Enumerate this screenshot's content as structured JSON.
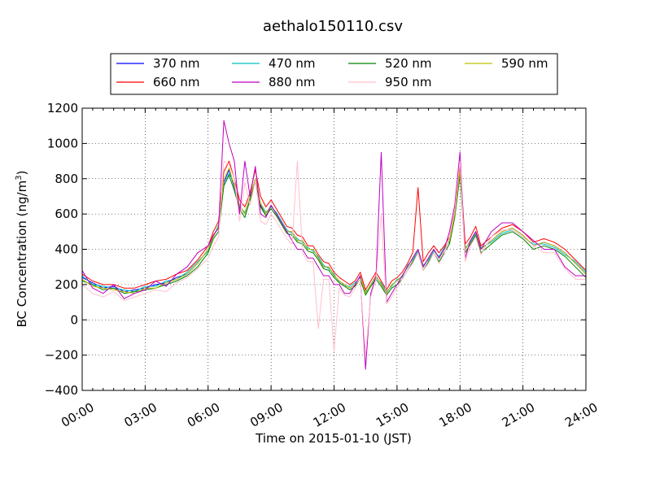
{
  "chart_data": {
    "type": "line",
    "title": "aethalo150110.csv",
    "xlabel": "Time on 2015-01-10 (JST)",
    "ylabel_main": "BC Concentration (ng/m",
    "ylabel_sup": "3",
    "ylabel_close": ")",
    "xlim": [
      0,
      24
    ],
    "ylim": [
      -400,
      1200
    ],
    "x_ticks": [
      0,
      3,
      6,
      9,
      12,
      15,
      18,
      21,
      24
    ],
    "x_tick_labels": [
      "00:00",
      "03:00",
      "06:00",
      "09:00",
      "12:00",
      "15:00",
      "18:00",
      "21:00",
      "24:00"
    ],
    "y_ticks": [
      -400,
      -200,
      0,
      200,
      400,
      600,
      800,
      1000,
      1200
    ],
    "y_tick_labels": [
      "−400",
      "−200",
      "0",
      "200",
      "400",
      "600",
      "800",
      "1000",
      "1200"
    ],
    "grid": true,
    "legend_position": "top",
    "x": [
      0,
      0.5,
      1,
      1.5,
      2,
      2.5,
      3,
      3.5,
      4,
      4.5,
      5,
      5.5,
      6,
      6.25,
      6.5,
      6.75,
      7,
      7.25,
      7.5,
      7.75,
      8,
      8.25,
      8.5,
      8.75,
      9,
      9.25,
      9.5,
      9.75,
      10,
      10.25,
      10.5,
      10.75,
      11,
      11.25,
      11.5,
      11.75,
      12,
      12.25,
      12.5,
      12.75,
      13,
      13.25,
      13.5,
      13.75,
      14,
      14.25,
      14.5,
      14.75,
      15,
      15.25,
      15.5,
      15.75,
      16,
      16.25,
      16.5,
      16.75,
      17,
      17.25,
      17.5,
      17.75,
      18,
      18.25,
      18.5,
      18.75,
      19,
      19.5,
      20,
      20.5,
      21,
      21.5,
      22,
      22.5,
      23,
      23.5,
      24
    ],
    "series": [
      {
        "name": "370 nm",
        "color": "#0000ff",
        "values": [
          240,
          210,
          180,
          190,
          160,
          170,
          180,
          200,
          210,
          240,
          260,
          320,
          400,
          480,
          520,
          780,
          850,
          750,
          650,
          600,
          700,
          800,
          650,
          600,
          650,
          600,
          550,
          500,
          500,
          450,
          450,
          400,
          400,
          350,
          300,
          300,
          250,
          220,
          200,
          180,
          200,
          250,
          150,
          200,
          250,
          200,
          150,
          200,
          220,
          250,
          300,
          350,
          400,
          300,
          350,
          400,
          350,
          400,
          450,
          600,
          850,
          400,
          450,
          500,
          400,
          450,
          500,
          520,
          480,
          420,
          440,
          420,
          380,
          320,
          260
        ]
      },
      {
        "name": "470 nm",
        "color": "#00bfbf",
        "values": [
          250,
          200,
          190,
          180,
          170,
          160,
          190,
          190,
          220,
          230,
          270,
          330,
          390,
          470,
          540,
          760,
          830,
          770,
          640,
          610,
          690,
          780,
          660,
          610,
          640,
          610,
          560,
          510,
          490,
          460,
          440,
          410,
          390,
          360,
          310,
          290,
          260,
          210,
          190,
          190,
          210,
          240,
          160,
          190,
          240,
          210,
          160,
          190,
          230,
          240,
          310,
          340,
          390,
          310,
          340,
          390,
          360,
          410,
          440,
          590,
          830,
          410,
          440,
          490,
          410,
          440,
          490,
          510,
          470,
          430,
          430,
          410,
          370,
          330,
          270
        ]
      },
      {
        "name": "520 nm",
        "color": "#008000",
        "values": [
          220,
          200,
          170,
          180,
          150,
          160,
          170,
          180,
          200,
          220,
          250,
          300,
          380,
          460,
          500,
          760,
          820,
          730,
          630,
          580,
          680,
          790,
          640,
          590,
          630,
          590,
          540,
          490,
          480,
          440,
          430,
          390,
          380,
          340,
          290,
          280,
          240,
          210,
          190,
          170,
          190,
          230,
          140,
          190,
          230,
          190,
          140,
          180,
          200,
          230,
          280,
          330,
          380,
          280,
          330,
          380,
          330,
          380,
          430,
          580,
          820,
          380,
          430,
          480,
          380,
          430,
          480,
          500,
          460,
          400,
          420,
          400,
          360,
          300,
          240
        ]
      },
      {
        "name": "590 nm",
        "color": "#bfbf00",
        "values": [
          230,
          190,
          180,
          170,
          160,
          150,
          180,
          180,
          210,
          230,
          260,
          320,
          400,
          470,
          530,
          800,
          860,
          760,
          650,
          600,
          700,
          800,
          660,
          600,
          650,
          600,
          550,
          500,
          500,
          450,
          450,
          400,
          400,
          350,
          300,
          300,
          250,
          220,
          200,
          180,
          200,
          250,
          150,
          200,
          250,
          200,
          150,
          200,
          220,
          250,
          300,
          350,
          400,
          300,
          350,
          400,
          350,
          400,
          450,
          600,
          850,
          400,
          450,
          500,
          400,
          450,
          500,
          520,
          480,
          420,
          440,
          420,
          380,
          320,
          260
        ]
      },
      {
        "name": "660 nm",
        "color": "#ff0000",
        "values": [
          260,
          220,
          200,
          200,
          180,
          180,
          200,
          220,
          230,
          260,
          280,
          340,
          420,
          500,
          560,
          840,
          900,
          800,
          680,
          640,
          720,
          850,
          700,
          640,
          680,
          630,
          580,
          530,
          520,
          480,
          470,
          420,
          420,
          370,
          330,
          320,
          270,
          240,
          220,
          200,
          220,
          270,
          170,
          220,
          270,
          220,
          170,
          220,
          240,
          270,
          320,
          380,
          750,
          330,
          380,
          420,
          380,
          420,
          470,
          620,
          880,
          430,
          470,
          530,
          420,
          470,
          520,
          540,
          500,
          440,
          460,
          440,
          400,
          340,
          280
        ]
      },
      {
        "name": "880 nm",
        "color": "#bf00bf",
        "values": [
          280,
          180,
          150,
          200,
          120,
          150,
          170,
          220,
          190,
          260,
          300,
          380,
          420,
          480,
          520,
          1130,
          1000,
          900,
          600,
          900,
          700,
          870,
          600,
          580,
          650,
          600,
          550,
          500,
          450,
          400,
          400,
          350,
          350,
          300,
          250,
          250,
          200,
          200,
          150,
          150,
          200,
          250,
          -280,
          150,
          250,
          950,
          100,
          150,
          200,
          250,
          300,
          350,
          400,
          300,
          350,
          400,
          350,
          400,
          500,
          650,
          950,
          350,
          450,
          500,
          400,
          500,
          550,
          550,
          500,
          450,
          400,
          400,
          300,
          250,
          250
        ]
      },
      {
        "name": "950 nm",
        "color": "#ffc0cb",
        "values": [
          200,
          150,
          130,
          160,
          110,
          130,
          150,
          170,
          160,
          210,
          240,
          290,
          350,
          420,
          470,
          900,
          880,
          800,
          560,
          780,
          650,
          790,
          560,
          540,
          600,
          560,
          510,
          460,
          430,
          900,
          380,
          330,
          330,
          -50,
          230,
          230,
          -180,
          180,
          140,
          130,
          180,
          230,
          -200,
          130,
          230,
          600,
          90,
          130,
          180,
          230,
          280,
          320,
          380,
          280,
          320,
          380,
          320,
          370,
          470,
          620,
          900,
          330,
          420,
          470,
          370,
          470,
          510,
          510,
          470,
          420,
          380,
          380,
          290,
          230,
          230
        ]
      }
    ]
  }
}
